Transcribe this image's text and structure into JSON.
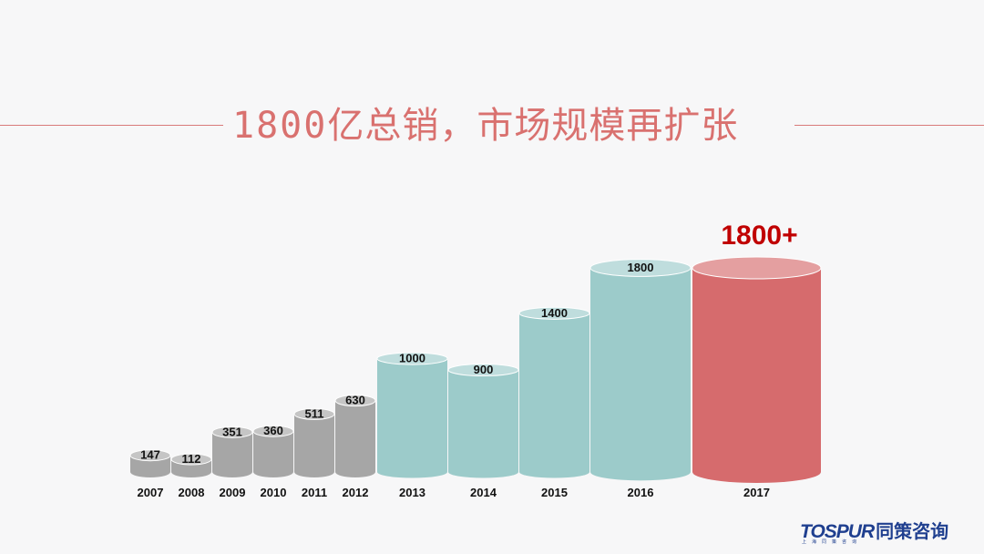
{
  "title": {
    "number": "1800",
    "text": "亿总销，市场规模再扩张"
  },
  "chart_data": {
    "type": "bar",
    "title": "1800亿总销，市场规模再扩张",
    "categories": [
      "2007",
      "2008",
      "2009",
      "2010",
      "2011",
      "2012",
      "2013",
      "2014",
      "2015",
      "2016",
      "2017"
    ],
    "values": [
      147,
      112,
      351,
      360,
      511,
      630,
      1000,
      900,
      1400,
      1800,
      1800
    ],
    "value_labels": [
      "147",
      "112",
      "351",
      "360",
      "511",
      "630",
      "1000",
      "900",
      "1400",
      "1800",
      ""
    ],
    "highlight_label": "1800+",
    "colors": {
      "gray": "#a6a6a6",
      "teal": "#9ccbca",
      "red": "#d66b6d"
    },
    "bar_colors": [
      "gray",
      "gray",
      "gray",
      "gray",
      "gray",
      "gray",
      "teal",
      "teal",
      "teal",
      "teal",
      "red"
    ],
    "ylim": [
      0,
      1800
    ],
    "grid": false,
    "legend": "none"
  },
  "logo": {
    "brand": "TOSPUR",
    "cn": "同策咨询",
    "sub": "上海同策咨询"
  }
}
